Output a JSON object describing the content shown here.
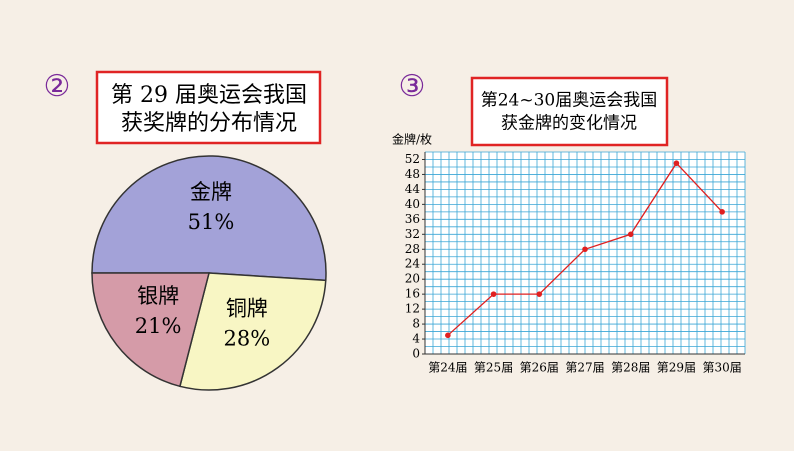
{
  "chart_data": [
    {
      "type": "pie",
      "marker": "②",
      "title": [
        "第 29 届奥运会我国",
        "获奖牌的分布情况"
      ],
      "categories": [
        "金牌",
        "银牌",
        "铜牌"
      ],
      "values": [
        51,
        21,
        28
      ],
      "value_labels": [
        "51%",
        "21%",
        "28%"
      ],
      "colors": [
        "#a3a2d8",
        "#d59ba8",
        "#f8f6c4"
      ]
    },
    {
      "type": "line",
      "marker": "③",
      "title": [
        "第24~30届奥运会我国",
        "获金牌的变化情况"
      ],
      "ylabel": "金牌/枚",
      "categories": [
        "第24届",
        "第25届",
        "第26届",
        "第27届",
        "第28届",
        "第29届",
        "第30届"
      ],
      "values": [
        5,
        16,
        16,
        28,
        32,
        51,
        38
      ],
      "color": "#e02020",
      "ylim": [
        0,
        54
      ],
      "yticks": [
        0,
        4,
        8,
        12,
        16,
        20,
        24,
        28,
        32,
        36,
        40,
        44,
        48,
        52
      ],
      "grid": true
    }
  ]
}
